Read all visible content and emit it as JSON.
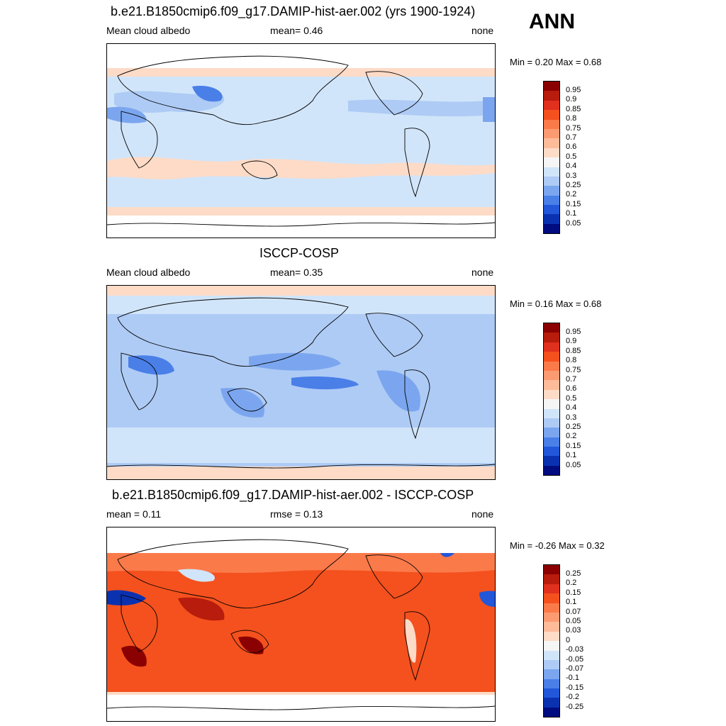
{
  "season": "ANN",
  "chart_data": [
    {
      "type": "heatmap",
      "title": "b.e21.B1850cmip6.f09_g17.DAMIP-hist-aer.002 (yrs 1900-1924)",
      "left_label": "Mean cloud albedo",
      "center_label": "mean=   0.46",
      "right_label": "none",
      "min_max": "Min =   0.20 Max =   0.68",
      "stats": {
        "mean": 0.46,
        "min": 0.2,
        "max": 0.68
      },
      "colorbar": {
        "labels": [
          "0.95",
          "0.9",
          "0.85",
          "0.8",
          "0.75",
          "0.7",
          "0.6",
          "0.5",
          "0.4",
          "0.3",
          "0.25",
          "0.2",
          "0.15",
          "0.1",
          "0.05"
        ],
        "colors": [
          "#8b0000",
          "#b71c0c",
          "#e0301e",
          "#f4511e",
          "#fb7a4a",
          "#fc9b72",
          "#fdbb9a",
          "#fddbc7",
          "#f5f5f5",
          "#d1e5fa",
          "#aecbf5",
          "#7ba6ef",
          "#4a7fe8",
          "#2257d9",
          "#0a32b0",
          "#000c80"
        ]
      }
    },
    {
      "type": "heatmap",
      "title": "ISCCP-COSP",
      "left_label": "Mean cloud albedo",
      "center_label": "mean=   0.35",
      "right_label": "none",
      "min_max": "Min =   0.16 Max =   0.68",
      "stats": {
        "mean": 0.35,
        "min": 0.16,
        "max": 0.68
      },
      "colorbar": {
        "labels": [
          "0.95",
          "0.9",
          "0.85",
          "0.8",
          "0.75",
          "0.7",
          "0.6",
          "0.5",
          "0.4",
          "0.3",
          "0.25",
          "0.2",
          "0.15",
          "0.1",
          "0.05"
        ],
        "colors": [
          "#8b0000",
          "#b71c0c",
          "#e0301e",
          "#f4511e",
          "#fb7a4a",
          "#fc9b72",
          "#fdbb9a",
          "#fddbc7",
          "#f5f5f5",
          "#d1e5fa",
          "#aecbf5",
          "#7ba6ef",
          "#4a7fe8",
          "#2257d9",
          "#0a32b0",
          "#000c80"
        ]
      }
    },
    {
      "type": "heatmap",
      "title": "b.e21.B1850cmip6.f09_g17.DAMIP-hist-aer.002 - ISCCP-COSP",
      "left_label": "mean =   0.11",
      "center_label": "rmse =   0.13",
      "right_label": "none",
      "min_max": "Min =  -0.26 Max =   0.32",
      "stats": {
        "mean": 0.11,
        "rmse": 0.13,
        "min": -0.26,
        "max": 0.32
      },
      "colorbar": {
        "labels": [
          "0.25",
          "0.2",
          "0.15",
          "0.1",
          "0.07",
          "0.05",
          "0.03",
          "0",
          "-0.03",
          "-0.05",
          "-0.07",
          "-0.1",
          "-0.15",
          "-0.2",
          "-0.25"
        ],
        "colors": [
          "#8b0000",
          "#b71c0c",
          "#e0301e",
          "#f4511e",
          "#fb7a4a",
          "#fc9b72",
          "#fdbb9a",
          "#fddbc7",
          "#f5f5f5",
          "#d1e5fa",
          "#aecbf5",
          "#7ba6ef",
          "#4a7fe8",
          "#2257d9",
          "#0a32b0",
          "#000c80"
        ]
      }
    }
  ]
}
